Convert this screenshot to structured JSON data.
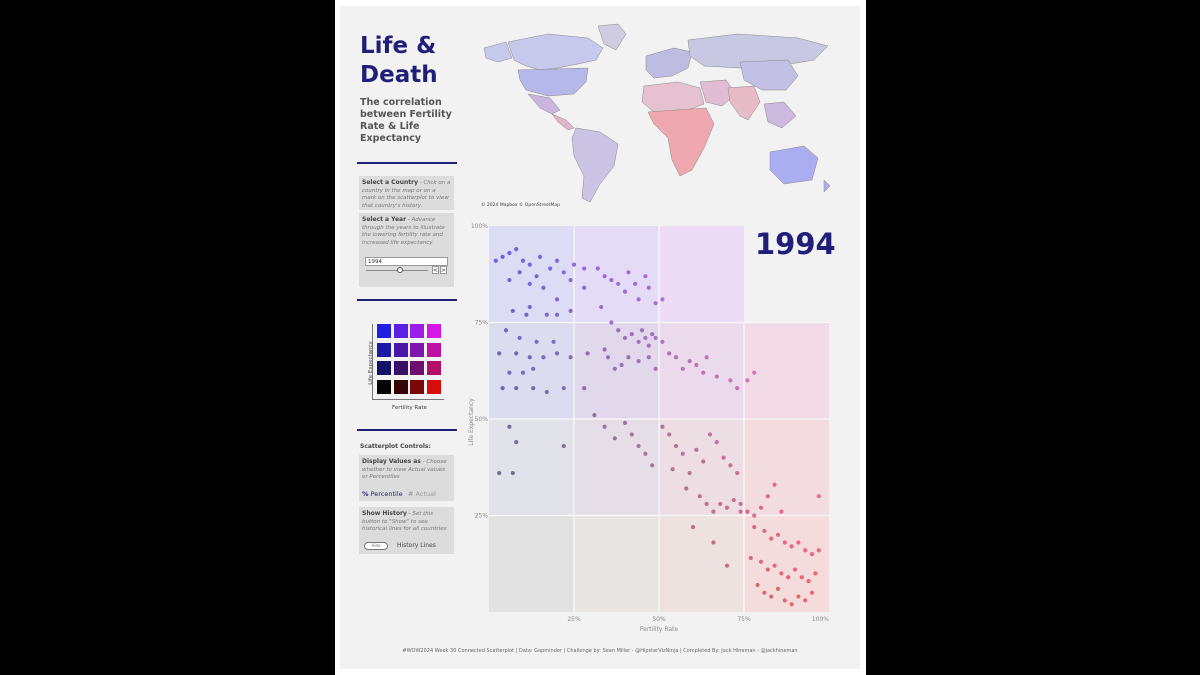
{
  "header": {
    "title_line1": "Life &",
    "title_line2": "Death",
    "subtitle": "The correlation between Fertility Rate & Life Expectancy"
  },
  "select_country": {
    "heading": "Select a Country",
    "text": "- Click on a country in the map or on a mark on the scatterplot to view that country's history."
  },
  "select_year": {
    "heading": "Select a Year",
    "text": "- Advance through the years to illustrate the lowering fertility rate and increased life expectancy",
    "value": "1994",
    "prev": "<",
    "next": ">"
  },
  "legend": {
    "ylabel": "Life Expectancy",
    "xlabel": "Fertility Rate",
    "colors": [
      [
        "#2020e0",
        "#5c1fe6",
        "#9a1ee8",
        "#d416e6"
      ],
      [
        "#1a1aa6",
        "#4b16a8",
        "#7e15ad",
        "#bf10a6"
      ],
      [
        "#121268",
        "#3a1066",
        "#6e0f6b",
        "#b40c6a"
      ],
      [
        "#050505",
        "#330505",
        "#7a0808",
        "#d80c0c"
      ]
    ]
  },
  "controls": {
    "title": "Scatterplot Controls:",
    "display_heading": "Display Values as",
    "display_text": "- Choose whether to view Actual values or Percentiles",
    "opt_percentile": "Percentile",
    "opt_actual": "Actual",
    "history_heading": "Show History",
    "history_text": "- Set this button to \"Show\" to see historical lines for all countries",
    "history_toggle": "Hide",
    "history_label": "History Lines"
  },
  "map": {
    "credit": "© 2024 Mapbox © OpenStreetMap"
  },
  "year_display": "1994",
  "footer": "#WOW2024 Week 30 Connected Scatterplot | Data: Gapminder | Challenge by: Sean Miller - @HipsterVizNinja | Completed By: Jack Hineman - @jackhineman",
  "chart_data": {
    "type": "scatter",
    "xlabel": "Fertility Rate",
    "ylabel": "Life Expectancy",
    "x_ticks": [
      "25%",
      "50%",
      "75%",
      "100%"
    ],
    "y_ticks": [
      "25%",
      "50%",
      "75%",
      "100%"
    ],
    "xlim": [
      0,
      100
    ],
    "ylim": [
      0,
      100
    ],
    "grid": true,
    "points": [
      [
        2,
        91
      ],
      [
        4,
        92
      ],
      [
        6,
        93
      ],
      [
        8,
        94
      ],
      [
        10,
        91
      ],
      [
        12,
        90
      ],
      [
        15,
        92
      ],
      [
        18,
        89
      ],
      [
        14,
        87
      ],
      [
        20,
        91
      ],
      [
        22,
        88
      ],
      [
        25,
        90
      ],
      [
        28,
        89
      ],
      [
        9,
        88
      ],
      [
        12,
        85
      ],
      [
        6,
        86
      ],
      [
        16,
        84
      ],
      [
        20,
        81
      ],
      [
        24,
        86
      ],
      [
        28,
        84
      ],
      [
        7,
        78
      ],
      [
        11,
        77
      ],
      [
        12,
        79
      ],
      [
        17,
        77
      ],
      [
        20,
        77
      ],
      [
        24,
        78
      ],
      [
        5,
        73
      ],
      [
        9,
        71
      ],
      [
        14,
        70
      ],
      [
        19,
        70
      ],
      [
        3,
        67
      ],
      [
        8,
        67
      ],
      [
        12,
        66
      ],
      [
        16,
        66
      ],
      [
        20,
        67
      ],
      [
        24,
        66
      ],
      [
        29,
        67
      ],
      [
        6,
        62
      ],
      [
        10,
        62
      ],
      [
        13,
        63
      ],
      [
        4,
        58
      ],
      [
        8,
        58
      ],
      [
        13,
        58
      ],
      [
        17,
        57
      ],
      [
        22,
        58
      ],
      [
        28,
        58
      ],
      [
        32,
        89
      ],
      [
        34,
        87
      ],
      [
        36,
        86
      ],
      [
        38,
        85
      ],
      [
        40,
        83
      ],
      [
        41,
        88
      ],
      [
        43,
        85
      ],
      [
        44,
        81
      ],
      [
        46,
        87
      ],
      [
        47,
        84
      ],
      [
        49,
        80
      ],
      [
        51,
        81
      ],
      [
        33,
        79
      ],
      [
        36,
        75
      ],
      [
        38,
        73
      ],
      [
        40,
        71
      ],
      [
        42,
        72
      ],
      [
        44,
        70
      ],
      [
        45,
        73
      ],
      [
        46,
        71
      ],
      [
        47,
        69
      ],
      [
        48,
        72
      ],
      [
        49,
        71
      ],
      [
        34,
        68
      ],
      [
        35,
        66
      ],
      [
        37,
        63
      ],
      [
        39,
        64
      ],
      [
        41,
        66
      ],
      [
        44,
        65
      ],
      [
        47,
        66
      ],
      [
        49,
        63
      ],
      [
        51,
        70
      ],
      [
        53,
        67
      ],
      [
        55,
        66
      ],
      [
        57,
        63
      ],
      [
        59,
        65
      ],
      [
        61,
        64
      ],
      [
        63,
        62
      ],
      [
        64,
        66
      ],
      [
        67,
        61
      ],
      [
        71,
        60
      ],
      [
        73,
        58
      ],
      [
        76,
        60
      ],
      [
        78,
        62
      ],
      [
        6,
        48
      ],
      [
        8,
        44
      ],
      [
        3,
        36
      ],
      [
        7,
        36
      ],
      [
        22,
        43
      ],
      [
        31,
        51
      ],
      [
        34,
        48
      ],
      [
        37,
        45
      ],
      [
        40,
        49
      ],
      [
        42,
        46
      ],
      [
        44,
        43
      ],
      [
        46,
        41
      ],
      [
        48,
        38
      ],
      [
        51,
        48
      ],
      [
        53,
        46
      ],
      [
        55,
        43
      ],
      [
        57,
        41
      ],
      [
        59,
        36
      ],
      [
        61,
        42
      ],
      [
        63,
        39
      ],
      [
        65,
        46
      ],
      [
        67,
        44
      ],
      [
        69,
        40
      ],
      [
        71,
        38
      ],
      [
        73,
        36
      ],
      [
        54,
        37
      ],
      [
        58,
        32
      ],
      [
        62,
        30
      ],
      [
        64,
        28
      ],
      [
        66,
        26
      ],
      [
        68,
        28
      ],
      [
        70,
        27
      ],
      [
        72,
        29
      ],
      [
        74,
        28
      ],
      [
        76,
        26
      ],
      [
        78,
        25
      ],
      [
        80,
        27
      ],
      [
        97,
        30
      ],
      [
        82,
        30
      ],
      [
        84,
        33
      ],
      [
        86,
        26
      ],
      [
        78,
        22
      ],
      [
        81,
        21
      ],
      [
        83,
        19
      ],
      [
        85,
        20
      ],
      [
        87,
        18
      ],
      [
        89,
        17
      ],
      [
        91,
        18
      ],
      [
        93,
        16
      ],
      [
        95,
        15
      ],
      [
        97,
        16
      ],
      [
        77,
        14
      ],
      [
        80,
        13
      ],
      [
        82,
        11
      ],
      [
        84,
        12
      ],
      [
        86,
        10
      ],
      [
        88,
        9
      ],
      [
        90,
        11
      ],
      [
        92,
        9
      ],
      [
        94,
        8
      ],
      [
        96,
        10
      ],
      [
        79,
        7
      ],
      [
        81,
        5
      ],
      [
        83,
        4
      ],
      [
        85,
        6
      ],
      [
        87,
        3
      ],
      [
        89,
        2
      ],
      [
        91,
        4
      ],
      [
        93,
        3
      ],
      [
        95,
        5
      ],
      [
        74,
        26
      ],
      [
        66,
        18
      ],
      [
        70,
        12
      ],
      [
        60,
        22
      ]
    ]
  }
}
